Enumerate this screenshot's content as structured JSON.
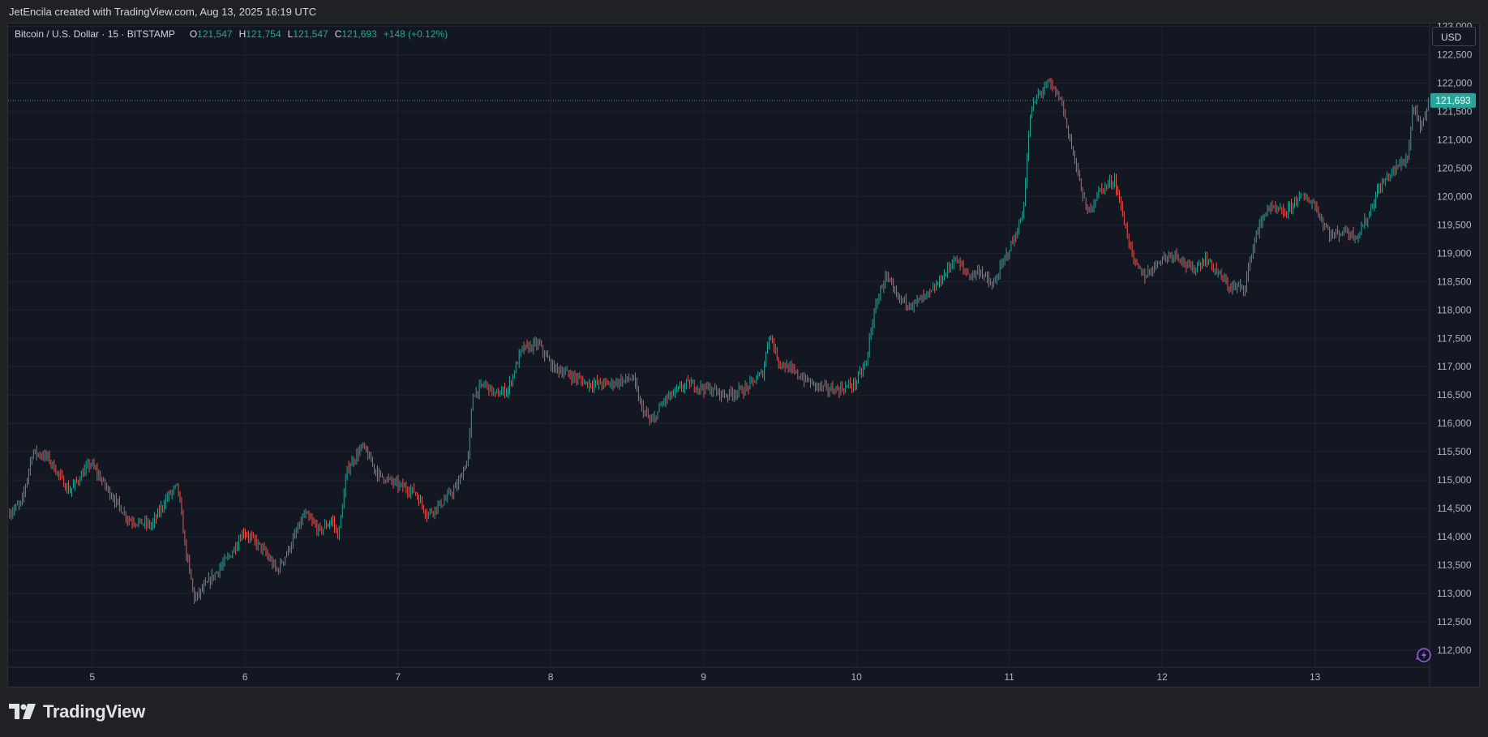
{
  "header": {
    "attribution": "JetEncila created with TradingView.com, Aug 13, 2025 16:19 UTC"
  },
  "legend": {
    "symbol": "Bitcoin / U.S. Dollar · 15 · BITSTAMP",
    "open_label": "O",
    "open": "121,547",
    "high_label": "H",
    "high": "121,754",
    "low_label": "L",
    "low": "121,547",
    "close_label": "C",
    "close": "121,693",
    "change": "+148 (+0.12%)"
  },
  "currency_button": "USD",
  "footer": {
    "brand": "TradingView",
    "logo_icon": "tradingview-logo-icon"
  },
  "colors": {
    "up": "#26a69a",
    "down": "#ef5350",
    "background": "#131722",
    "grid": "#1f2330"
  },
  "chart_data": {
    "type": "candlestick",
    "timeframe": "15",
    "exchange": "BITSTAMP",
    "currency": "USD",
    "x_tick_labels": [
      "5",
      "6",
      "7",
      "8",
      "9",
      "10",
      "11",
      "12",
      "13"
    ],
    "x_tick_days": [
      5,
      6,
      7,
      8,
      9,
      10,
      11,
      12,
      13
    ],
    "y_tick_labels": [
      "112,000",
      "112,500",
      "113,000",
      "113,500",
      "114,000",
      "114,500",
      "115,000",
      "115,500",
      "116,000",
      "116,500",
      "117,000",
      "117,500",
      "118,000",
      "118,500",
      "119,000",
      "119,500",
      "120,000",
      "120,500",
      "121,000",
      "121,500",
      "122,000",
      "122,500",
      "123,000"
    ],
    "ylim": [
      111700,
      123050
    ],
    "xlim_days": [
      4.45,
      13.75
    ],
    "current_price": 121693,
    "current_price_label": "121,693",
    "price_path": [
      [
        4.46,
        114400
      ],
      [
        4.55,
        114600
      ],
      [
        4.62,
        115500
      ],
      [
        4.72,
        115400
      ],
      [
        4.86,
        114800
      ],
      [
        5.0,
        115300
      ],
      [
        5.12,
        114800
      ],
      [
        5.25,
        114300
      ],
      [
        5.4,
        114200
      ],
      [
        5.5,
        114700
      ],
      [
        5.57,
        114900
      ],
      [
        5.62,
        113800
      ],
      [
        5.68,
        112900
      ],
      [
        5.8,
        113300
      ],
      [
        5.92,
        113700
      ],
      [
        6.0,
        114100
      ],
      [
        6.12,
        113800
      ],
      [
        6.22,
        113400
      ],
      [
        6.3,
        113800
      ],
      [
        6.4,
        114400
      ],
      [
        6.5,
        114100
      ],
      [
        6.58,
        114300
      ],
      [
        6.62,
        114000
      ],
      [
        6.68,
        115200
      ],
      [
        6.78,
        115600
      ],
      [
        6.88,
        115100
      ],
      [
        7.02,
        114900
      ],
      [
        7.12,
        114800
      ],
      [
        7.2,
        114400
      ],
      [
        7.3,
        114600
      ],
      [
        7.4,
        114900
      ],
      [
        7.47,
        115400
      ],
      [
        7.5,
        116500
      ],
      [
        7.58,
        116700
      ],
      [
        7.65,
        116500
      ],
      [
        7.73,
        116600
      ],
      [
        7.82,
        117300
      ],
      [
        7.93,
        117400
      ],
      [
        8.02,
        117000
      ],
      [
        8.1,
        116900
      ],
      [
        8.25,
        116700
      ],
      [
        8.4,
        116700
      ],
      [
        8.55,
        116800
      ],
      [
        8.6,
        116300
      ],
      [
        8.67,
        116000
      ],
      [
        8.75,
        116400
      ],
      [
        8.9,
        116700
      ],
      [
        9.05,
        116600
      ],
      [
        9.15,
        116500
      ],
      [
        9.28,
        116600
      ],
      [
        9.4,
        116900
      ],
      [
        9.44,
        117600
      ],
      [
        9.5,
        117100
      ],
      [
        9.6,
        116900
      ],
      [
        9.72,
        116700
      ],
      [
        9.82,
        116600
      ],
      [
        9.9,
        116600
      ],
      [
        10.0,
        116700
      ],
      [
        10.08,
        117100
      ],
      [
        10.1,
        117600
      ],
      [
        10.15,
        118200
      ],
      [
        10.2,
        118600
      ],
      [
        10.28,
        118200
      ],
      [
        10.38,
        118100
      ],
      [
        10.5,
        118300
      ],
      [
        10.58,
        118600
      ],
      [
        10.65,
        118900
      ],
      [
        10.75,
        118600
      ],
      [
        10.82,
        118700
      ],
      [
        10.9,
        118400
      ],
      [
        10.98,
        118900
      ],
      [
        11.05,
        119300
      ],
      [
        11.1,
        119700
      ],
      [
        11.15,
        121500
      ],
      [
        11.2,
        121800
      ],
      [
        11.27,
        122000
      ],
      [
        11.35,
        121700
      ],
      [
        11.45,
        120500
      ],
      [
        11.52,
        119700
      ],
      [
        11.6,
        120100
      ],
      [
        11.7,
        120300
      ],
      [
        11.75,
        119700
      ],
      [
        11.83,
        118800
      ],
      [
        11.9,
        118600
      ],
      [
        12.0,
        118900
      ],
      [
        12.1,
        119000
      ],
      [
        12.2,
        118700
      ],
      [
        12.3,
        118900
      ],
      [
        12.45,
        118400
      ],
      [
        12.55,
        118400
      ],
      [
        12.62,
        119300
      ],
      [
        12.7,
        119800
      ],
      [
        12.82,
        119700
      ],
      [
        12.9,
        120000
      ],
      [
        13.0,
        119900
      ],
      [
        13.05,
        119600
      ],
      [
        13.12,
        119300
      ],
      [
        13.2,
        119400
      ],
      [
        13.28,
        119300
      ],
      [
        13.35,
        119600
      ],
      [
        13.42,
        120100
      ],
      [
        13.5,
        120400
      ],
      [
        13.58,
        120600
      ],
      [
        13.62,
        120700
      ],
      [
        13.65,
        121600
      ],
      [
        13.7,
        121200
      ],
      [
        13.73,
        121400
      ],
      [
        13.75,
        121693
      ]
    ]
  }
}
